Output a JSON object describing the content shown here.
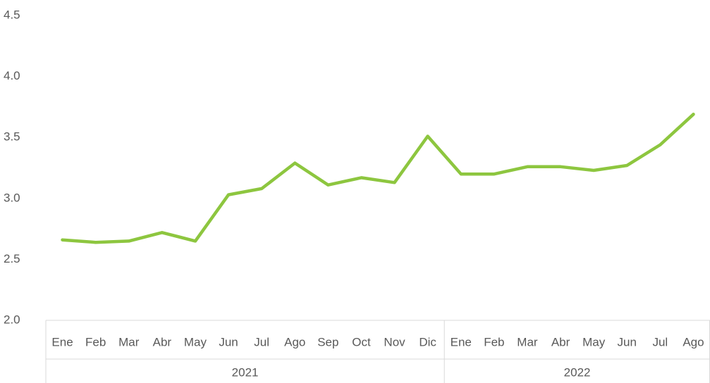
{
  "chart_data": {
    "type": "line",
    "groups": [
      {
        "label": "2021",
        "categories": [
          "Ene",
          "Feb",
          "Mar",
          "Abr",
          "May",
          "Jun",
          "Jul",
          "Ago",
          "Sep",
          "Oct",
          "Nov",
          "Dic"
        ]
      },
      {
        "label": "2022",
        "categories": [
          "Ene",
          "Feb",
          "Mar",
          "Abr",
          "May",
          "Jun",
          "Jul",
          "Ago"
        ]
      }
    ],
    "series": [
      {
        "color": "#8dc63f",
        "values": [
          2.66,
          2.64,
          2.65,
          2.72,
          2.65,
          3.03,
          3.08,
          3.29,
          3.11,
          3.17,
          3.13,
          3.51,
          3.2,
          3.2,
          3.26,
          3.26,
          3.23,
          3.27,
          3.44,
          3.69
        ]
      }
    ],
    "ylim": [
      2,
      4.5
    ],
    "yticks": [
      {
        "value": 2,
        "label": "2.0"
      },
      2.5,
      {
        "value": 3,
        "label": "3.0"
      },
      3.5,
      {
        "value": 4,
        "label": "4.0"
      },
      4.5
    ],
    "grid": false
  }
}
